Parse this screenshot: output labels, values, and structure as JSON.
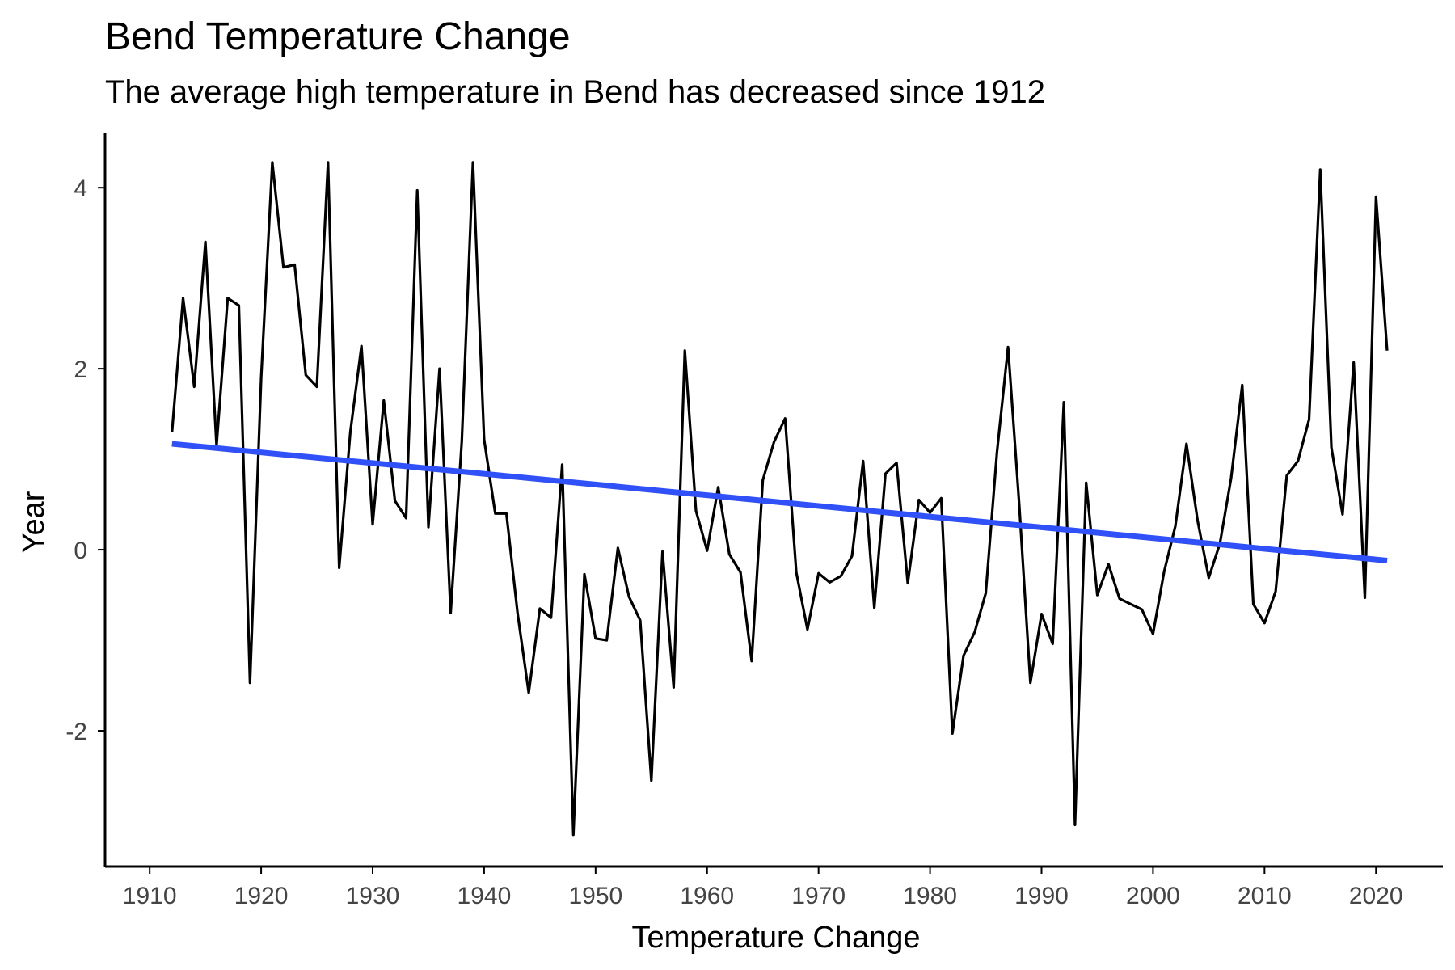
{
  "chart_data": {
    "type": "line",
    "title": "Bend Temperature Change",
    "subtitle": "The average high temperature in Bend has decreased since 1912",
    "xlabel": "Temperature Change",
    "ylabel": "Year",
    "xlim": [
      1906,
      2026
    ],
    "ylim": [
      -3.5,
      4.6
    ],
    "x_ticks": [
      1910,
      1920,
      1930,
      1940,
      1950,
      1960,
      1970,
      1980,
      1990,
      2000,
      2010,
      2020
    ],
    "y_ticks": [
      -2,
      0,
      2,
      4
    ],
    "grid": false,
    "colors": {
      "series": "#000000",
      "trend": "#3050f8",
      "axis": "#000000",
      "tick_text": "#444444"
    },
    "series": [
      {
        "x": [
          1912,
          1913,
          1914,
          1915,
          1916,
          1917,
          1918,
          1919,
          1920,
          1921,
          1922,
          1923,
          1924,
          1925,
          1926,
          1927,
          1928,
          1929,
          1930,
          1931,
          1932,
          1933,
          1934,
          1935,
          1936,
          1937,
          1938,
          1939,
          1940,
          1941,
          1942,
          1943,
          1944,
          1945,
          1946,
          1947,
          1948,
          1949,
          1950,
          1951,
          1952,
          1953,
          1954,
          1955,
          1956,
          1957,
          1958,
          1959,
          1960,
          1961,
          1962,
          1963,
          1964,
          1965,
          1966,
          1967,
          1968,
          1969,
          1970,
          1971,
          1972,
          1973,
          1974,
          1975,
          1976,
          1977,
          1978,
          1979,
          1980,
          1981,
          1982,
          1983,
          1984,
          1985,
          1986,
          1987,
          1988,
          1989,
          1990,
          1991,
          1992,
          1993,
          1994,
          1995,
          1996,
          1997,
          1998,
          1999,
          2000,
          2001,
          2002,
          2003,
          2004,
          2005,
          2006,
          2007,
          2008,
          2009,
          2010,
          2011,
          2012,
          2013,
          2014,
          2015,
          2016,
          2017,
          2018,
          2019,
          2020,
          2021
        ],
        "values": [
          1.3,
          2.78,
          1.8,
          3.4,
          1.15,
          2.78,
          2.7,
          -1.47,
          1.9,
          4.28,
          3.12,
          3.15,
          1.93,
          1.8,
          4.28,
          -0.2,
          1.3,
          2.25,
          0.28,
          1.65,
          0.54,
          0.35,
          3.97,
          0.25,
          2.0,
          -0.7,
          1.2,
          4.28,
          1.22,
          0.4,
          0.4,
          -0.7,
          -1.58,
          -0.65,
          -0.75,
          0.94,
          -3.15,
          -0.27,
          -0.98,
          -1.0,
          0.02,
          -0.52,
          -0.78,
          -2.55,
          -0.02,
          -1.52,
          2.2,
          0.43,
          -0.01,
          0.69,
          -0.05,
          -0.25,
          -1.23,
          0.77,
          1.19,
          1.45,
          -0.25,
          -0.88,
          -0.26,
          -0.36,
          -0.29,
          -0.07,
          0.98,
          -0.64,
          0.84,
          0.96,
          -0.37,
          0.55,
          0.41,
          0.57,
          -2.03,
          -1.17,
          -0.91,
          -0.48,
          1.07,
          2.24,
          0.5,
          -1.47,
          -0.71,
          -1.04,
          1.63,
          -3.04,
          0.74,
          -0.5,
          -0.16,
          -0.54,
          -0.6,
          -0.66,
          -0.93,
          -0.24,
          0.26,
          1.17,
          0.32,
          -0.31,
          0.07,
          0.79,
          1.82,
          -0.6,
          -0.81,
          -0.46,
          0.82,
          0.98,
          1.44,
          4.2,
          1.13,
          0.39,
          2.07,
          -0.53,
          3.9,
          2.2
        ]
      },
      {
        "x": [
          1912,
          2021
        ],
        "values": [
          1.17,
          -0.12
        ]
      }
    ]
  }
}
